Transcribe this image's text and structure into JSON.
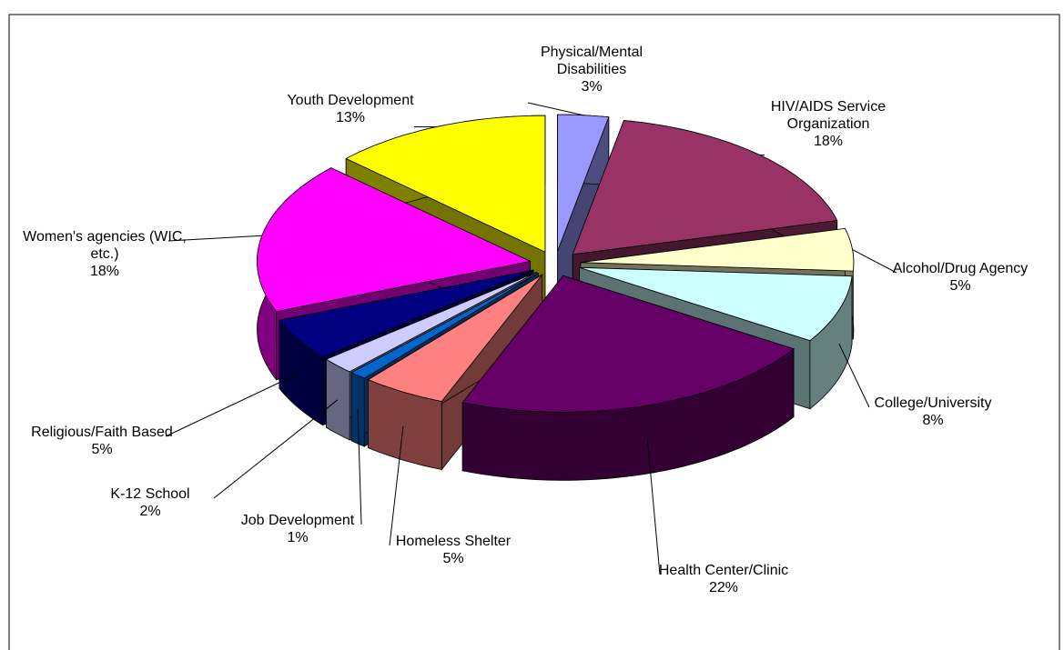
{
  "chart_data": {
    "type": "pie3d",
    "categories": [
      "Physical/Mental Disabilities",
      "HIV/AIDS Service Organization",
      "Alcohol/Drug Agency",
      "College/University",
      "Health Center/Clinic",
      "Homeless Shelter",
      "Job Development",
      "K-12 School",
      "Religious/Faith Based",
      "Women's agencies (WIC, etc.)",
      "Youth Development"
    ],
    "values": [
      3,
      18,
      5,
      8,
      22,
      5,
      1,
      2,
      5,
      18,
      13
    ],
    "value_labels": [
      "3%",
      "18%",
      "5%",
      "8%",
      "22%",
      "5%",
      "1%",
      "2%",
      "5%",
      "18%",
      "13%"
    ],
    "colors": [
      "#9999ff",
      "#993366",
      "#ffffcc",
      "#ccffff",
      "#660066",
      "#ff8080",
      "#0066cc",
      "#ccccff",
      "#000080",
      "#ff00ff",
      "#ffff00"
    ]
  }
}
